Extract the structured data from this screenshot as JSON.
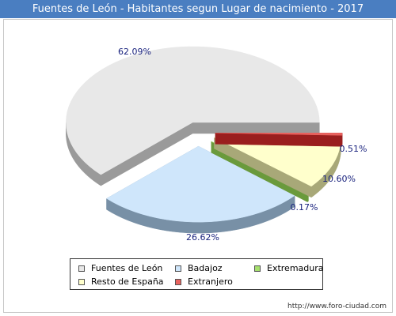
{
  "title": "Fuentes de León - Habitantes segun Lugar de nacimiento - 2017",
  "footer": "http://www.foro-ciudad.com",
  "colors": {
    "title_bg": "#4a7ec1",
    "label_text": "#1a237e"
  },
  "chart_data": {
    "type": "pie",
    "style": "3d-exploded",
    "slices": [
      {
        "name": "Fuentes de León",
        "value": 62.09,
        "label": "62.09%",
        "color": "#e8e8e8",
        "side": "#9a9a9a"
      },
      {
        "name": "Badajoz",
        "value": 26.62,
        "label": "26.62%",
        "color": "#cfe6fb",
        "side": "#7890a6"
      },
      {
        "name": "Extremadura",
        "value": 0.17,
        "label": "0.17%",
        "color": "#a6e06d",
        "side": "#6a9a3c"
      },
      {
        "name": "Resto de España",
        "value": 10.6,
        "label": "10.60%",
        "color": "#ffffcc",
        "side": "#a8a878"
      },
      {
        "name": "Extranjero",
        "value": 0.51,
        "label": "0.51%",
        "color": "#e8625e",
        "side": "#9a1e1e"
      }
    ],
    "legend": {
      "placement": "bottom",
      "rows": [
        [
          "Fuentes de León",
          "Badajoz",
          "Extremadura"
        ],
        [
          "Resto de España",
          "Extranjero"
        ]
      ]
    }
  }
}
